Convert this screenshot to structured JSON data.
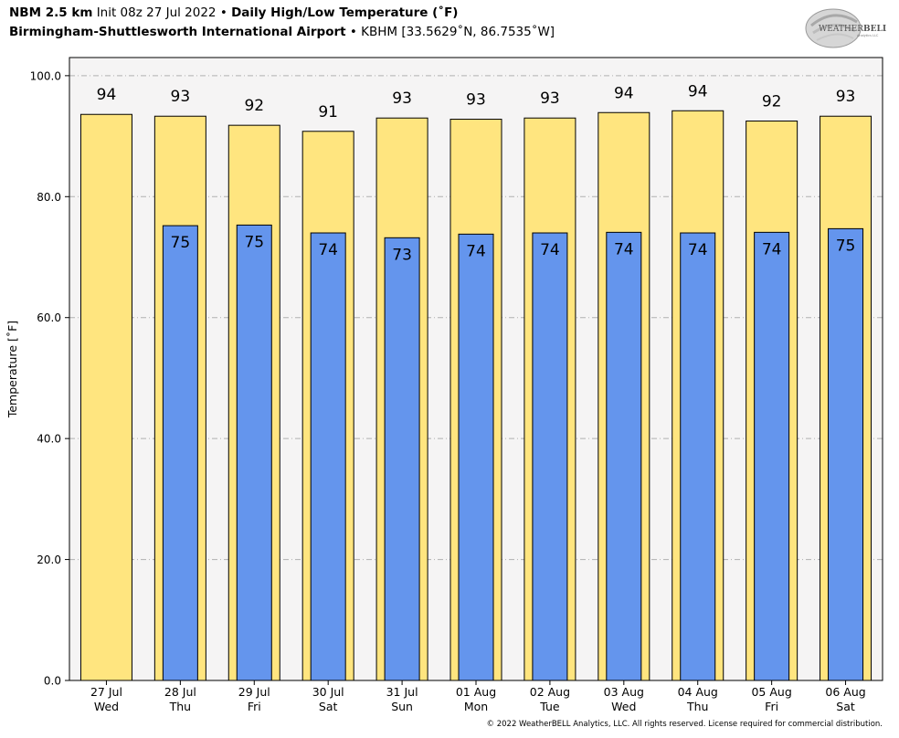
{
  "header": {
    "model": "NBM 2.5 km",
    "init": "Init 08z 27 Jul 2022",
    "sep1": "•",
    "product": "Daily High/Low Temperature (˚F)",
    "station": "Birmingham-Shuttlesworth International Airport",
    "sep2": "•",
    "station_info": "KBHM [33.5629˚N, 86.7535˚W]"
  },
  "logo": {
    "text_a": "WEATHER",
    "text_b": "BELL",
    "sub": "Analytics LLC"
  },
  "footer": "© 2022 WeatherBELL Analytics, LLC. All rights reserved. License required for commercial distribution.",
  "colors": {
    "high_bar": "#ffe57f",
    "low_bar": "#6495ed",
    "plot_bg": "#f5f4f4",
    "grid": "#b0b0b0"
  },
  "chart_data": {
    "type": "bar",
    "ylabel": "Temperature [˚F]",
    "ylim": [
      0,
      103
    ],
    "yticks": [
      0,
      20,
      40,
      60,
      80,
      100
    ],
    "ytick_labels": [
      "0.0",
      "20.0",
      "40.0",
      "60.0",
      "80.0",
      "100.0"
    ],
    "grid": true,
    "categories": [
      [
        "27 Jul",
        "Wed"
      ],
      [
        "28 Jul",
        "Thu"
      ],
      [
        "29 Jul",
        "Fri"
      ],
      [
        "30 Jul",
        "Sat"
      ],
      [
        "31 Jul",
        "Sun"
      ],
      [
        "01 Aug",
        "Mon"
      ],
      [
        "02 Aug",
        "Tue"
      ],
      [
        "03 Aug",
        "Wed"
      ],
      [
        "04 Aug",
        "Thu"
      ],
      [
        "05 Aug",
        "Fri"
      ],
      [
        "06 Aug",
        "Sat"
      ]
    ],
    "series": [
      {
        "values": [
          93.6,
          93.3,
          91.8,
          90.8,
          93.0,
          92.8,
          93.0,
          93.9,
          94.2,
          92.5,
          93.3
        ],
        "labels": [
          "94",
          "93",
          "92",
          "91",
          "93",
          "93",
          "93",
          "94",
          "94",
          "92",
          "93"
        ]
      },
      {
        "values": [
          null,
          75.2,
          75.3,
          74.0,
          73.2,
          73.8,
          74.0,
          74.1,
          74.0,
          74.1,
          74.7
        ],
        "labels": [
          "",
          "75",
          "75",
          "74",
          "73",
          "74",
          "74",
          "74",
          "74",
          "74",
          "75"
        ]
      }
    ]
  }
}
